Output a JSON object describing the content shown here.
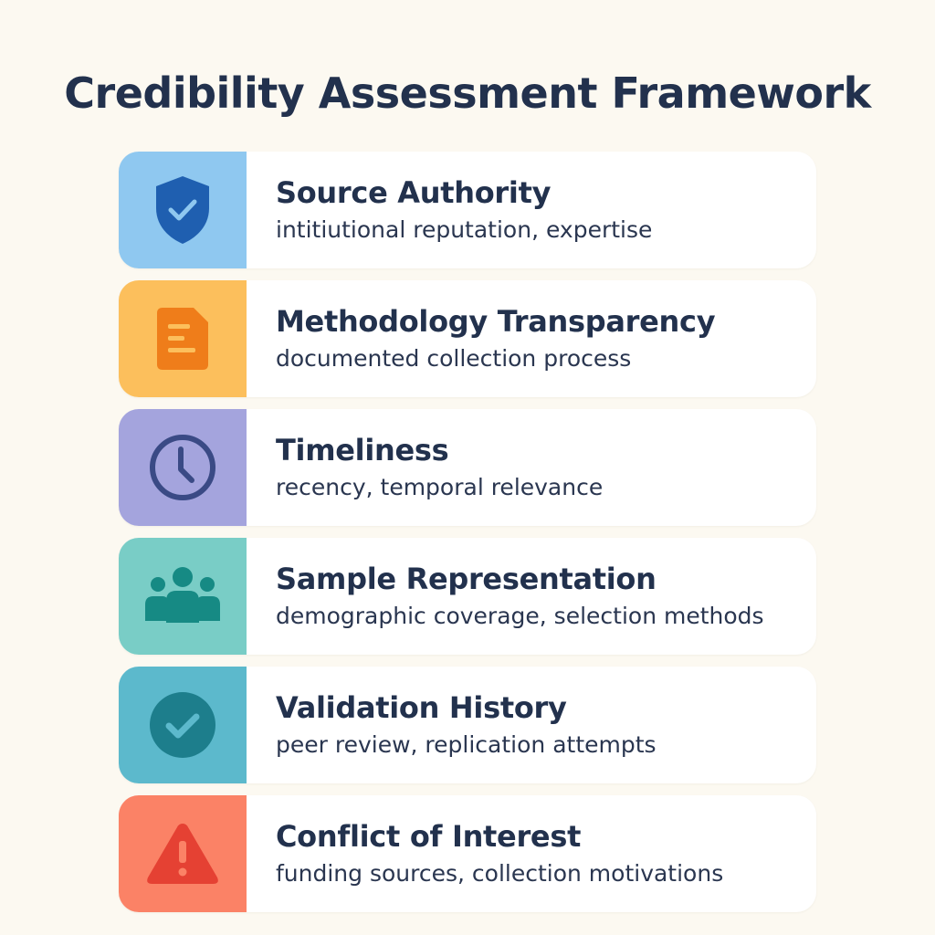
{
  "title": "Credibility Assessment Framework",
  "items": [
    {
      "title": "Source Authority",
      "desc": "intitiutional reputation, expertise",
      "icon": "shield-check-icon",
      "bg": "#8fc8f0",
      "fg": "#1f5fb0"
    },
    {
      "title": "Methodology Transparency",
      "desc": "documented collection process",
      "icon": "document-icon",
      "bg": "#fcbf5c",
      "fg": "#ef7d1a"
    },
    {
      "title": "Timeliness",
      "desc": "recency, temporal relevance",
      "icon": "clock-icon",
      "bg": "#a4a4dd",
      "fg": "#3a4a85"
    },
    {
      "title": "Sample Representation",
      "desc": "demographic coverage, selection methods",
      "icon": "people-icon",
      "bg": "#79cdc6",
      "fg": "#168a84"
    },
    {
      "title": "Validation History",
      "desc": "peer review, replication attempts",
      "icon": "check-circle-icon",
      "bg": "#5cb9cc",
      "fg": "#1d7e8c"
    },
    {
      "title": "Conflict of Interest",
      "desc": "funding sources, collection motivations",
      "icon": "warning-icon",
      "bg": "#fb8266",
      "fg": "#e54133"
    }
  ]
}
